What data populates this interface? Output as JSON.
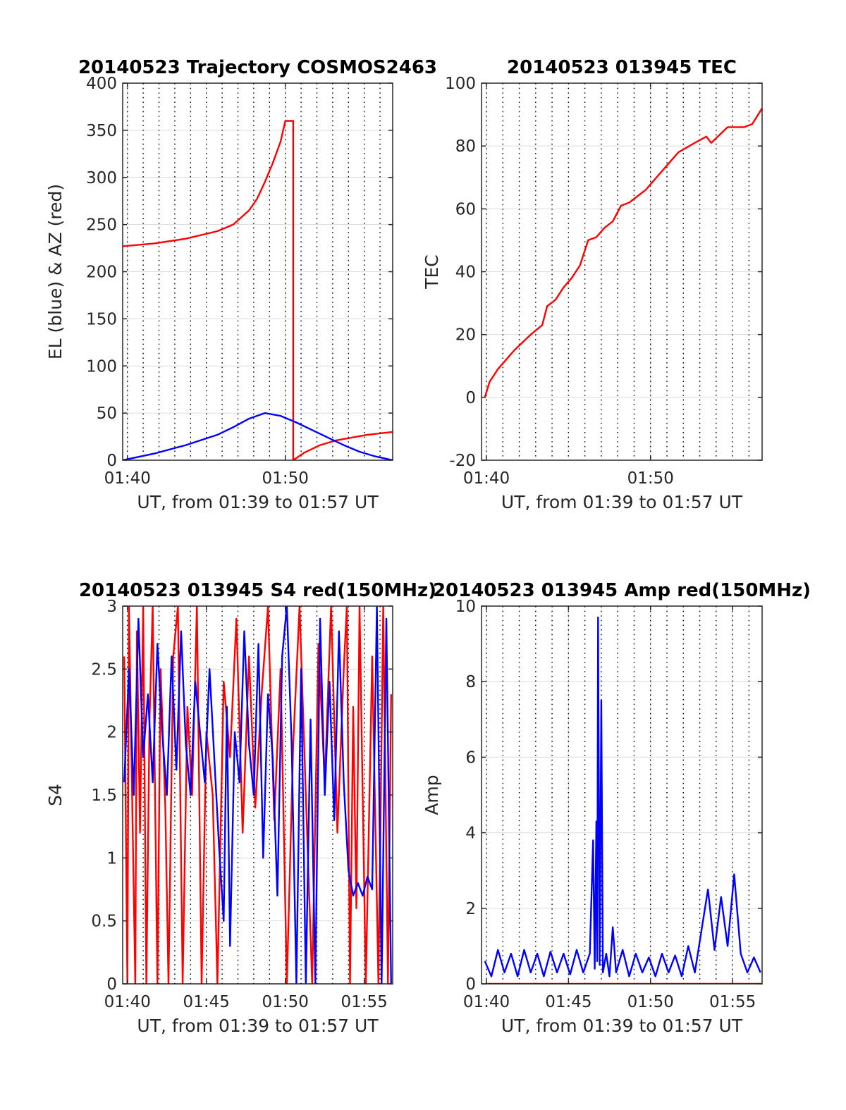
{
  "colors": {
    "red": "#ff0000",
    "blue": "#0000ff",
    "grid": "#dcdcdc",
    "axis": "#262626"
  },
  "chart_data": [
    {
      "type": "line",
      "title": "20140523 Trajectory COSMOS2463",
      "xlabel": "UT, from 01:39 to 01:57 UT",
      "ylabel": "EL (blue) & AZ (red)",
      "xlim": [
        0,
        17.1
      ],
      "ylim": [
        0,
        400
      ],
      "xticks": [
        0.3,
        10.3
      ],
      "xtick_labels": [
        "01:40",
        "01:50"
      ],
      "yticks": [
        0,
        50,
        100,
        150,
        200,
        250,
        300,
        350,
        400
      ],
      "ytick_labels": [
        "0",
        "50",
        "100",
        "150",
        "200",
        "250",
        "300",
        "350",
        "400"
      ],
      "grid": true,
      "series": [
        {
          "color": "#ff0000",
          "x": [
            0,
            2,
            4,
            6,
            7,
            8,
            8.5,
            9,
            9.5,
            10,
            10.3,
            10.8,
            10.801,
            11.5,
            12.5,
            13.5,
            14.5,
            15.5,
            17.1
          ],
          "y": [
            227,
            230,
            235,
            243,
            250,
            265,
            277,
            295,
            315,
            338,
            360,
            360,
            0,
            8,
            16,
            21,
            24,
            27,
            30
          ]
        },
        {
          "color": "#0000ff",
          "x": [
            0,
            2,
            4,
            6,
            7,
            8,
            9,
            10,
            11,
            12,
            13,
            14,
            15,
            16,
            17.1
          ],
          "y": [
            0,
            7,
            16,
            27,
            35,
            44,
            50,
            47,
            40,
            32,
            24,
            16,
            9,
            4,
            0
          ]
        }
      ]
    },
    {
      "type": "line",
      "title": "20140523 013945 TEC",
      "xlabel": "UT, from 01:39 to 01:57 UT",
      "ylabel": "TEC",
      "xlim": [
        0,
        17.1
      ],
      "ylim": [
        -20,
        100
      ],
      "xticks": [
        0.3,
        10.3
      ],
      "xtick_labels": [
        "01:40",
        "01:50"
      ],
      "yticks": [
        -20,
        0,
        20,
        40,
        60,
        80,
        100
      ],
      "ytick_labels": [
        "-20",
        "0",
        "20",
        "40",
        "60",
        "80",
        "100"
      ],
      "grid": true,
      "series": [
        {
          "color": "#ff0000",
          "x": [
            0.2,
            0.5,
            1,
            2,
            3,
            3.7,
            4,
            4.5,
            5,
            5.5,
            6,
            6.5,
            7,
            7.5,
            8,
            8.5,
            9,
            9.5,
            10,
            11,
            12,
            13,
            13.7,
            14,
            15,
            16,
            16.5,
            17.1
          ],
          "y": [
            0,
            5,
            9,
            15,
            20,
            23,
            29,
            31,
            35,
            38,
            42,
            50,
            51,
            54,
            56,
            61,
            62,
            64,
            66,
            72,
            78,
            81,
            83,
            81,
            86,
            86,
            87,
            92
          ]
        }
      ]
    },
    {
      "type": "line",
      "title": "20140523 013945 S4 red(150MHz)",
      "xlabel": "UT, from 01:39 to 01:57 UT",
      "ylabel": "S4",
      "xlim": [
        0,
        17.1
      ],
      "ylim": [
        0,
        3
      ],
      "xticks": [
        0.3,
        5.3,
        10.3,
        15.3
      ],
      "xtick_labels": [
        "01:40",
        "01:45",
        "01:50",
        "01:55"
      ],
      "yticks": [
        0,
        0.5,
        1,
        1.5,
        2,
        2.5,
        3
      ],
      "ytick_labels": [
        "0",
        "0.5",
        "1",
        "1.5",
        "2",
        "2.5",
        "3"
      ],
      "grid": true,
      "series": [
        {
          "color": "#ff0000",
          "x": [
            0.1,
            0.3,
            0.4,
            0.6,
            0.8,
            0.9,
            1.1,
            1.3,
            1.5,
            1.7,
            1.9,
            2.2,
            2.4,
            2.7,
            2.9,
            3.2,
            3.5,
            3.8,
            4.1,
            4.4,
            4.7,
            5.0,
            5.3,
            5.7,
            6.0,
            6.4,
            6.8,
            7.2,
            7.6,
            8.0,
            8.4,
            8.8,
            9.2,
            9.6,
            10.0,
            10.4,
            10.8,
            11.2,
            11.6,
            12.0,
            12.4,
            12.8,
            13.2,
            13.6,
            14.0,
            14.2,
            14.4,
            14.6,
            14.8,
            15.0,
            15.4,
            15.8,
            16.2,
            16.5,
            16.8,
            17.0
          ],
          "y": [
            2.6,
            0,
            3,
            1.5,
            0,
            2.8,
            1.2,
            3,
            0,
            2.1,
            3,
            0,
            2.5,
            1.4,
            0,
            2.6,
            3,
            0,
            2.2,
            1.5,
            3,
            0,
            2.0,
            1.5,
            0,
            2.4,
            1.8,
            2.9,
            1.2,
            2.6,
            1.4,
            2.3,
            3,
            1.3,
            2.5,
            0,
            1.9,
            3,
            1.5,
            0,
            2.7,
            1.6,
            3,
            1.2,
            2.5,
            3,
            0,
            2.2,
            0.6,
            3,
            0,
            2.6,
            0,
            3,
            0,
            2.3
          ]
        },
        {
          "color": "#0000ff",
          "x": [
            0.1,
            0.4,
            0.7,
            1.0,
            1.3,
            1.6,
            1.9,
            2.2,
            2.5,
            2.8,
            3.1,
            3.4,
            3.7,
            4.0,
            4.3,
            4.6,
            4.9,
            5.2,
            5.5,
            5.8,
            6.1,
            6.4,
            6.6,
            6.8,
            7.1,
            7.4,
            7.7,
            8.0,
            8.3,
            8.6,
            8.9,
            9.2,
            9.5,
            9.8,
            10.1,
            10.4,
            10.7,
            11.0,
            11.3,
            11.6,
            11.9,
            12.2,
            12.5,
            12.8,
            13.1,
            13.4,
            13.7,
            14.0,
            14.3,
            14.6,
            14.9,
            15.2,
            15.5,
            15.8,
            16.1,
            16.4,
            16.7,
            17.0
          ],
          "y": [
            1.6,
            2.5,
            1.5,
            2.9,
            1.8,
            2.3,
            1.6,
            2.7,
            2.0,
            1.5,
            2.6,
            1.7,
            2.8,
            1.9,
            1.5,
            2.4,
            2.0,
            1.6,
            2.5,
            1.8,
            1.1,
            0.5,
            2.2,
            0.3,
            2.0,
            1.6,
            2.8,
            1.9,
            1.5,
            2.7,
            1.0,
            2.3,
            1.8,
            0.7,
            2.6,
            3,
            1.9,
            0,
            2.5,
            0,
            2.1,
            0,
            2.9,
            1.5,
            2.4,
            1.3,
            2.8,
            1.6,
            0.9,
            0.7,
            0.8,
            0.7,
            0.85,
            0.75,
            3,
            0,
            2.9,
            0
          ]
        }
      ]
    },
    {
      "type": "line",
      "title": "20140523 013945 Amp red(150MHz)",
      "xlabel": "UT, from 01:39 to 01:57 UT",
      "ylabel": "Amp",
      "xlim": [
        0,
        17.1
      ],
      "ylim": [
        0,
        10
      ],
      "xticks": [
        0.3,
        5.3,
        10.3,
        15.3
      ],
      "xtick_labels": [
        "01:40",
        "01:45",
        "01:50",
        "01:55"
      ],
      "yticks": [
        0,
        2,
        4,
        6,
        8,
        10
      ],
      "ytick_labels": [
        "0",
        "2",
        "4",
        "6",
        "8",
        "10"
      ],
      "grid": true,
      "series": [
        {
          "color": "#ff0000",
          "x": [
            0.2,
            17.1
          ],
          "y": [
            0,
            0
          ]
        },
        {
          "color": "#0000ff",
          "x": [
            0.2,
            0.6,
            1.0,
            1.4,
            1.8,
            2.2,
            2.6,
            3.0,
            3.4,
            3.8,
            4.2,
            4.6,
            5.0,
            5.4,
            5.8,
            6.2,
            6.6,
            6.8,
            6.9,
            7.0,
            7.05,
            7.1,
            7.2,
            7.3,
            7.4,
            7.6,
            7.8,
            8.0,
            8.2,
            8.6,
            9.0,
            9.4,
            9.8,
            10.2,
            10.6,
            11.0,
            11.4,
            11.8,
            12.2,
            12.6,
            13.0,
            13.4,
            13.8,
            14.2,
            14.6,
            15.0,
            15.4,
            15.8,
            16.2,
            16.6,
            17.0
          ],
          "y": [
            0.6,
            0.2,
            0.9,
            0.3,
            0.8,
            0.2,
            0.9,
            0.3,
            0.8,
            0.2,
            0.85,
            0.3,
            0.8,
            0.25,
            0.9,
            0.3,
            0.8,
            3.8,
            0.4,
            4.3,
            0.6,
            9.7,
            0.5,
            7.5,
            0.3,
            0.8,
            0.2,
            1.5,
            0.3,
            0.9,
            0.2,
            0.8,
            0.3,
            0.7,
            0.2,
            0.8,
            0.3,
            0.75,
            0.2,
            1.0,
            0.3,
            1.4,
            2.5,
            0.9,
            2.3,
            1.0,
            2.9,
            0.8,
            0.3,
            0.7,
            0.3
          ]
        }
      ]
    }
  ]
}
